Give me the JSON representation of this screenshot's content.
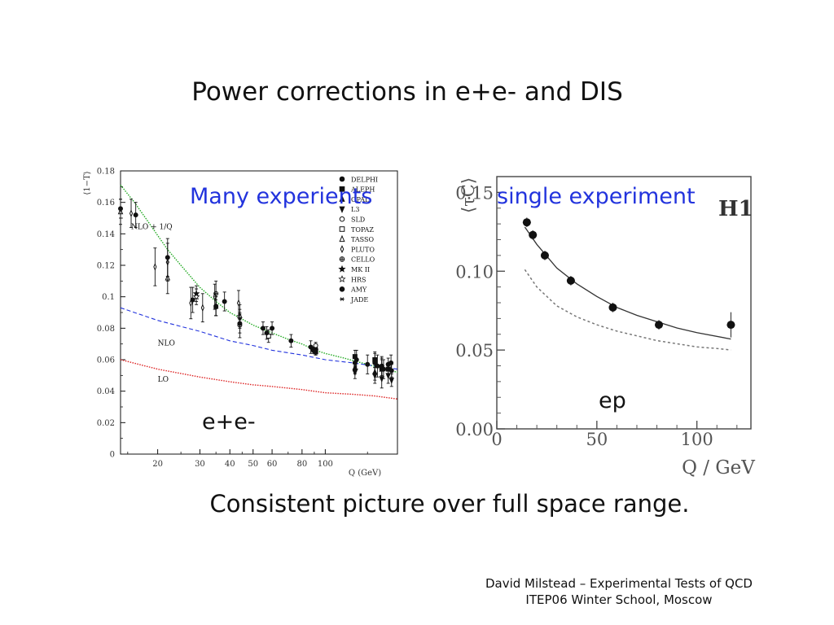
{
  "slide": {
    "title": "Power corrections in e+e- and DIS",
    "label_many": "Many experients",
    "label_single": "single experiment",
    "label_eplus": "e+e-",
    "label_ep": "ep",
    "conclusion": "Consistent picture over full space range.",
    "footer_line1": "David Milstead – Experimental Tests of QCD",
    "footer_line2": "ITEP06 Winter School, Moscow"
  },
  "chart_data": [
    {
      "type": "scatter",
      "ylabel": "⟨1−T⟩",
      "xlabel": "Q (GeV)",
      "x_scale": "log",
      "xlim": [
        14,
        200
      ],
      "ylim": [
        0,
        0.18
      ],
      "y_ticks": [
        0,
        0.02,
        0.04,
        0.06,
        0.08,
        0.1,
        0.12,
        0.14,
        0.16,
        0.18
      ],
      "y_tick_labels": [
        "0",
        "0.02",
        "0.04",
        "0.06",
        "0.08",
        "0.1",
        "0.12",
        "0.14",
        "0.16",
        "0.18"
      ],
      "x_ticks": [
        20,
        30,
        40,
        50,
        60,
        80,
        100
      ],
      "x_tick_labels": [
        "20",
        "30",
        "40",
        "50",
        "60",
        "80",
        "100"
      ],
      "curve_labels": [
        {
          "text": "NLO + 1/Q",
          "x": 15.5,
          "y": 0.143
        },
        {
          "text": "NLO",
          "x": 20,
          "y": 0.069
        },
        {
          "text": "LO",
          "x": 20,
          "y": 0.046
        }
      ],
      "legend": [
        {
          "name": "DELPHI",
          "marker": "circle-filled"
        },
        {
          "name": "ALEPH",
          "marker": "square-filled"
        },
        {
          "name": "OPAL",
          "marker": "triangle-up-filled"
        },
        {
          "name": "L3",
          "marker": "triangle-down-filled"
        },
        {
          "name": "SLD",
          "marker": "circle-open"
        },
        {
          "name": "TOPAZ",
          "marker": "square-open"
        },
        {
          "name": "TASSO",
          "marker": "triangle-open"
        },
        {
          "name": "PLUTO",
          "marker": "diamond-open"
        },
        {
          "name": "CELLO",
          "marker": "cross-circle"
        },
        {
          "name": "MK II",
          "marker": "star-filled"
        },
        {
          "name": "HRS",
          "marker": "star-open"
        },
        {
          "name": "AMY",
          "marker": "circle-filled"
        },
        {
          "name": "JADE",
          "marker": "asterisk"
        }
      ],
      "legend_position": "top-right",
      "curves": [
        {
          "name": "NLO + 1/Q",
          "color": "#22aa22",
          "style": "dotted",
          "x": [
            14,
            16,
            18,
            20,
            22,
            25,
            30,
            35,
            40,
            50,
            60,
            70,
            80,
            91,
            100,
            120,
            150,
            200
          ],
          "y": [
            0.171,
            0.16,
            0.149,
            0.139,
            0.13,
            0.12,
            0.106,
            0.097,
            0.09,
            0.082,
            0.077,
            0.073,
            0.07,
            0.066,
            0.064,
            0.061,
            0.057,
            0.052
          ]
        },
        {
          "name": "NLO",
          "color": "#2233dd",
          "style": "dashed",
          "x": [
            14,
            20,
            30,
            40,
            50,
            60,
            80,
            100,
            130,
            160,
            200
          ],
          "y": [
            0.093,
            0.085,
            0.078,
            0.072,
            0.069,
            0.066,
            0.063,
            0.06,
            0.058,
            0.056,
            0.054
          ]
        },
        {
          "name": "LO",
          "color": "#dd2222",
          "style": "dotted",
          "x": [
            14,
            20,
            30,
            40,
            50,
            60,
            80,
            100,
            130,
            160,
            200
          ],
          "y": [
            0.06,
            0.054,
            0.049,
            0.046,
            0.044,
            0.043,
            0.041,
            0.039,
            0.038,
            0.037,
            0.035
          ]
        }
      ],
      "series": [
        {
          "name": "DELPHI",
          "marker": "circle-filled",
          "points": [
            {
              "x": 89,
              "y": 0.066,
              "err": 0.002
            },
            {
              "x": 91.2,
              "y": 0.067,
              "err": 0.002
            },
            {
              "x": 133,
              "y": 0.058,
              "err": 0.005
            },
            {
              "x": 161,
              "y": 0.058,
              "err": 0.006
            },
            {
              "x": 172,
              "y": 0.056,
              "err": 0.006
            },
            {
              "x": 183,
              "y": 0.057,
              "err": 0.004
            },
            {
              "x": 189,
              "y": 0.053,
              "err": 0.004
            }
          ]
        },
        {
          "name": "ALEPH",
          "marker": "square-filled",
          "points": [
            {
              "x": 91.2,
              "y": 0.065,
              "err": 0.002
            },
            {
              "x": 133,
              "y": 0.062,
              "err": 0.004
            },
            {
              "x": 161,
              "y": 0.06,
              "err": 0.005
            },
            {
              "x": 172,
              "y": 0.055,
              "err": 0.006
            },
            {
              "x": 183,
              "y": 0.054,
              "err": 0.004
            }
          ]
        },
        {
          "name": "OPAL",
          "marker": "triangle-up-filled",
          "points": [
            {
              "x": 91.2,
              "y": 0.068,
              "err": 0.002
            },
            {
              "x": 133,
              "y": 0.055,
              "err": 0.004
            },
            {
              "x": 161,
              "y": 0.052,
              "err": 0.005
            },
            {
              "x": 172,
              "y": 0.054,
              "err": 0.006
            }
          ]
        },
        {
          "name": "L3",
          "marker": "triangle-down-filled",
          "points": [
            {
              "x": 91.2,
              "y": 0.065,
              "err": 0.002
            },
            {
              "x": 133,
              "y": 0.052,
              "err": 0.004
            },
            {
              "x": 161,
              "y": 0.05,
              "err": 0.005
            },
            {
              "x": 172,
              "y": 0.048,
              "err": 0.006
            },
            {
              "x": 183,
              "y": 0.05,
              "err": 0.005
            },
            {
              "x": 189,
              "y": 0.047,
              "err": 0.004
            }
          ]
        },
        {
          "name": "SLD",
          "marker": "circle-open",
          "points": [
            {
              "x": 91.2,
              "y": 0.069,
              "err": 0.002
            }
          ]
        },
        {
          "name": "TOPAZ",
          "marker": "square-open",
          "points": [
            {
              "x": 58,
              "y": 0.075,
              "err": 0.004
            }
          ]
        },
        {
          "name": "TASSO",
          "marker": "triangle-open",
          "points": [
            {
              "x": 14,
              "y": 0.154,
              "err": 0.008
            },
            {
              "x": 22,
              "y": 0.112,
              "err": 0.01
            },
            {
              "x": 35,
              "y": 0.094,
              "err": 0.006
            },
            {
              "x": 44,
              "y": 0.088,
              "err": 0.007
            }
          ]
        },
        {
          "name": "PLUTO",
          "marker": "diamond-open",
          "points": [
            {
              "x": 15.5,
              "y": 0.153,
              "err": 0.009
            },
            {
              "x": 19.5,
              "y": 0.119,
              "err": 0.012
            },
            {
              "x": 22,
              "y": 0.122,
              "err": 0.012
            },
            {
              "x": 27.5,
              "y": 0.096,
              "err": 0.01
            },
            {
              "x": 30.8,
              "y": 0.093,
              "err": 0.009
            },
            {
              "x": 34.6,
              "y": 0.1,
              "err": 0.008
            },
            {
              "x": 43.5,
              "y": 0.096,
              "err": 0.008
            }
          ]
        },
        {
          "name": "CELLO",
          "marker": "cross-circle",
          "points": [
            {
              "x": 35,
              "y": 0.102,
              "err": 0.008
            },
            {
              "x": 44,
              "y": 0.082,
              "err": 0.008
            }
          ]
        },
        {
          "name": "MK II",
          "marker": "star-filled",
          "points": [
            {
              "x": 29,
              "y": 0.102,
              "err": 0.005
            }
          ]
        },
        {
          "name": "HRS",
          "marker": "star-open",
          "points": [
            {
              "x": 29,
              "y": 0.1,
              "err": 0.005
            }
          ]
        },
        {
          "name": "AMY",
          "marker": "circle-filled",
          "points": [
            {
              "x": 55,
              "y": 0.08,
              "err": 0.004
            },
            {
              "x": 57,
              "y": 0.077,
              "err": 0.004
            },
            {
              "x": 60,
              "y": 0.08,
              "err": 0.004
            }
          ]
        },
        {
          "name": "JADE",
          "marker": "asterisk",
          "points": [
            {
              "x": 35,
              "y": 0.093,
              "err": 0.005
            },
            {
              "x": 44,
              "y": 0.086,
              "err": 0.006
            }
          ]
        },
        {
          "name": "",
          "marker": "circle-filled",
          "points": [
            {
              "x": 14,
              "y": 0.156,
              "err": 0.006
            },
            {
              "x": 16.2,
              "y": 0.152,
              "err": 0.008
            },
            {
              "x": 22,
              "y": 0.125,
              "err": 0.012
            },
            {
              "x": 28,
              "y": 0.098,
              "err": 0.008
            },
            {
              "x": 35,
              "y": 0.094,
              "err": 0.006
            },
            {
              "x": 38,
              "y": 0.097,
              "err": 0.006
            },
            {
              "x": 44,
              "y": 0.083,
              "err": 0.006
            },
            {
              "x": 72,
              "y": 0.072,
              "err": 0.004
            },
            {
              "x": 87,
              "y": 0.068,
              "err": 0.004
            },
            {
              "x": 135,
              "y": 0.06,
              "err": 0.006
            },
            {
              "x": 150,
              "y": 0.057,
              "err": 0.006
            },
            {
              "x": 165,
              "y": 0.056,
              "err": 0.007
            },
            {
              "x": 175,
              "y": 0.054,
              "err": 0.006
            },
            {
              "x": 188,
              "y": 0.058,
              "err": 0.005
            }
          ]
        }
      ]
    },
    {
      "type": "line",
      "title": "H1",
      "ylabel": "⟨τC⟩",
      "xlabel": "Q / GeV",
      "xlim": [
        0,
        127
      ],
      "ylim": [
        0,
        0.16
      ],
      "y_ticks": [
        0,
        0.05,
        0.1,
        0.15
      ],
      "y_tick_labels": [
        "0.00",
        "0.05",
        "0.10",
        "0.15"
      ],
      "x_ticks": [
        0,
        50,
        100
      ],
      "x_tick_labels": [
        "0",
        "50",
        "100"
      ],
      "data": [
        {
          "x": 15,
          "y": 0.131,
          "err": 0.003
        },
        {
          "x": 18,
          "y": 0.123,
          "err": 0.003
        },
        {
          "x": 24,
          "y": 0.11,
          "err": 0.003
        },
        {
          "x": 37,
          "y": 0.094,
          "err": 0.003
        },
        {
          "x": 58,
          "y": 0.077,
          "err": 0.003
        },
        {
          "x": 81,
          "y": 0.066,
          "err": 0.003
        },
        {
          "x": 117,
          "y": 0.066,
          "err": 0.008
        }
      ],
      "curves": [
        {
          "name": "fit",
          "color": "#333333",
          "style": "solid",
          "x": [
            14,
            20,
            30,
            40,
            50,
            60,
            70,
            80,
            90,
            100,
            117
          ],
          "y": [
            0.128,
            0.117,
            0.102,
            0.092,
            0.084,
            0.077,
            0.072,
            0.068,
            0.064,
            0.061,
            0.057
          ]
        },
        {
          "name": "NLO",
          "color": "#777777",
          "style": "dashed",
          "x": [
            14,
            20,
            30,
            40,
            50,
            60,
            70,
            80,
            90,
            100,
            110,
            117
          ],
          "y": [
            0.101,
            0.09,
            0.078,
            0.071,
            0.066,
            0.062,
            0.059,
            0.056,
            0.054,
            0.052,
            0.051,
            0.05
          ]
        }
      ]
    }
  ]
}
